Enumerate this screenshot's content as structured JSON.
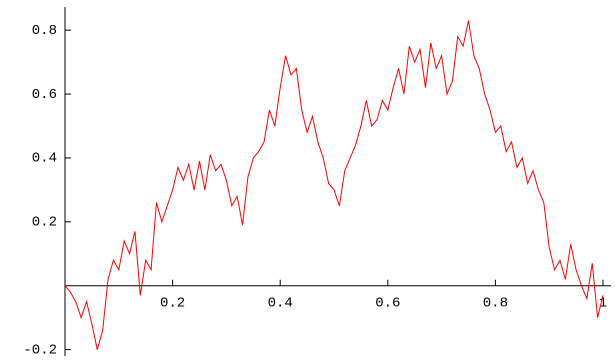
{
  "chart_data": {
    "type": "line",
    "x": [
      0,
      0.01,
      0.02,
      0.03,
      0.04,
      0.05,
      0.06,
      0.07,
      0.08,
      0.09,
      0.1,
      0.11,
      0.12,
      0.13,
      0.14,
      0.15,
      0.16,
      0.17,
      0.18,
      0.19,
      0.2,
      0.21,
      0.22,
      0.23,
      0.24,
      0.25,
      0.26,
      0.27,
      0.28,
      0.29,
      0.3,
      0.31,
      0.32,
      0.33,
      0.34,
      0.35,
      0.36,
      0.37,
      0.38,
      0.39,
      0.4,
      0.41,
      0.42,
      0.43,
      0.44,
      0.45,
      0.46,
      0.47,
      0.48,
      0.49,
      0.5,
      0.51,
      0.52,
      0.53,
      0.54,
      0.55,
      0.56,
      0.57,
      0.58,
      0.59,
      0.6,
      0.61,
      0.62,
      0.63,
      0.64,
      0.65,
      0.66,
      0.67,
      0.68,
      0.69,
      0.7,
      0.71,
      0.72,
      0.73,
      0.74,
      0.75,
      0.76,
      0.77,
      0.78,
      0.79,
      0.8,
      0.81,
      0.82,
      0.83,
      0.84,
      0.85,
      0.86,
      0.87,
      0.88,
      0.89,
      0.9,
      0.91,
      0.92,
      0.93,
      0.94,
      0.95,
      0.96,
      0.97,
      0.98,
      0.99,
      1
    ],
    "series": [
      {
        "color": "#ff0000",
        "values": [
          0,
          -0.02,
          -0.05,
          -0.1,
          -0.05,
          -0.12,
          -0.2,
          -0.14,
          0.02,
          0.08,
          0.05,
          0.14,
          0.1,
          0.17,
          -0.03,
          0.08,
          0.05,
          0.26,
          0.2,
          0.25,
          0.3,
          0.37,
          0.33,
          0.38,
          0.3,
          0.39,
          0.3,
          0.41,
          0.36,
          0.38,
          0.33,
          0.25,
          0.28,
          0.19,
          0.34,
          0.4,
          0.42,
          0.45,
          0.55,
          0.5,
          0.62,
          0.72,
          0.66,
          0.68,
          0.55,
          0.48,
          0.53,
          0.45,
          0.4,
          0.32,
          0.3,
          0.25,
          0.36,
          0.4,
          0.44,
          0.5,
          0.58,
          0.5,
          0.52,
          0.58,
          0.55,
          0.62,
          0.68,
          0.6,
          0.75,
          0.7,
          0.74,
          0.62,
          0.76,
          0.68,
          0.72,
          0.6,
          0.64,
          0.78,
          0.75,
          0.83,
          0.72,
          0.68,
          0.6,
          0.55,
          0.48,
          0.5,
          0.42,
          0.45,
          0.37,
          0.4,
          0.32,
          0.36,
          0.3,
          0.26,
          0.12,
          0.05,
          0.08,
          0.02,
          0.13,
          0.05,
          0,
          -0.04,
          0.07,
          -0.1,
          -0.03
        ]
      }
    ],
    "xlim": [
      0,
      1
    ],
    "ylim": [
      -0.22,
      0.86
    ],
    "xticks": [
      0.2,
      0.4,
      0.6,
      0.8,
      1
    ],
    "yticks": [
      -0.2,
      0.2,
      0.4,
      0.6,
      0.8
    ]
  }
}
